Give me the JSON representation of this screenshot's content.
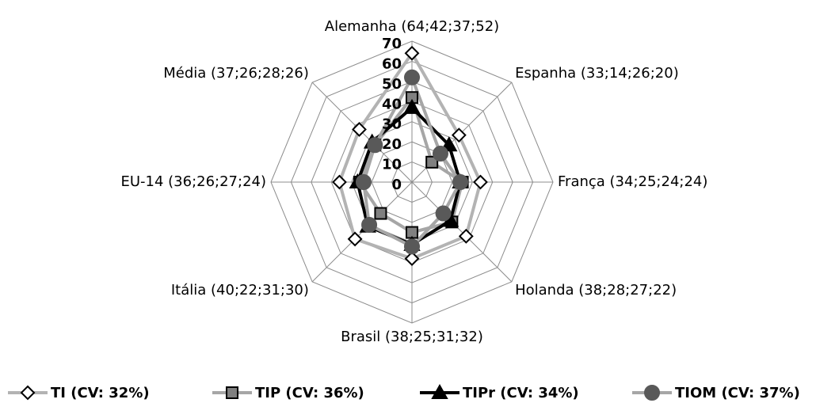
{
  "chart_data": {
    "type": "radar",
    "categories": [
      "Alemanha (64;42;37;52)",
      "Espanha (33;14;26;20)",
      "França (34;25;24;24)",
      "Holanda (38;28;27;22)",
      "Brasil (38;25;31;32)",
      "Itália (40;22;31;30)",
      "EU-14 (36;26;27;24)",
      "Média (37;26;28;26)"
    ],
    "series": [
      {
        "name": "TI (CV: 32%)",
        "color": "#b3b3b3",
        "marker": "diamond",
        "marker_color": "#ffffff",
        "values": [
          64,
          33,
          34,
          38,
          38,
          40,
          36,
          37
        ]
      },
      {
        "name": "TIP (CV: 36%)",
        "color": "#a6a6a6",
        "marker": "square",
        "marker_color": "#808080",
        "values": [
          42,
          14,
          25,
          28,
          25,
          22,
          26,
          26
        ]
      },
      {
        "name": "TIPr (CV: 34%)",
        "color": "#000000",
        "marker": "triangle",
        "marker_color": "#000000",
        "values": [
          37,
          26,
          24,
          27,
          31,
          31,
          27,
          28
        ]
      },
      {
        "name": "TIOM (CV: 37%)",
        "color": "#a6a6a6",
        "marker": "circle",
        "marker_color": "#595959",
        "values": [
          52,
          20,
          24,
          22,
          32,
          30,
          24,
          26
        ]
      }
    ],
    "rlim": [
      0,
      70
    ],
    "rticks": [
      0,
      10,
      20,
      30,
      40,
      50,
      60,
      70
    ],
    "grid": true,
    "legend": "bottom"
  }
}
